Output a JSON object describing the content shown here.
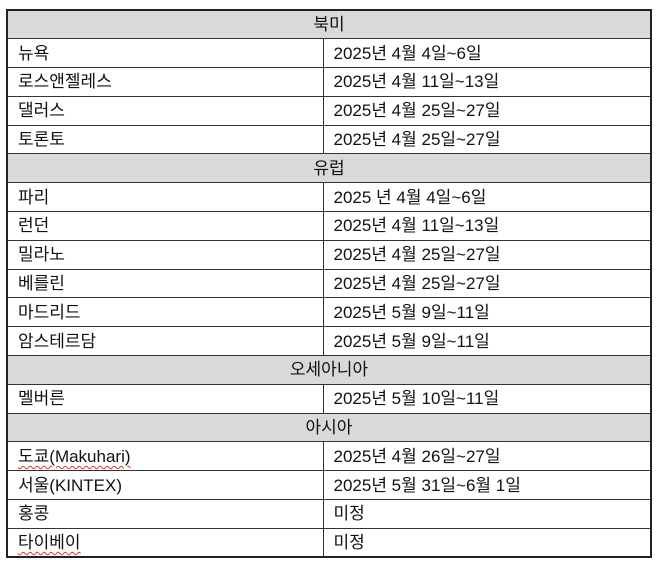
{
  "sections": [
    {
      "region": "북미",
      "rows": [
        {
          "city": "뉴욕",
          "date": "2025년 4월 4일~6일"
        },
        {
          "city": "로스앤젤레스",
          "date": "2025년 4월 11일~13일"
        },
        {
          "city": "댈러스",
          "date": "2025년 4월 25일~27일"
        },
        {
          "city": "토론토",
          "date": "2025년 4월 25일~27일"
        }
      ]
    },
    {
      "region": "유럽",
      "rows": [
        {
          "city": "파리",
          "date": "2025 년 4월 4일~6일"
        },
        {
          "city": "런던",
          "date": "2025년 4월 11일~13일"
        },
        {
          "city": "밀라노",
          "date": "2025년 4월 25일~27일"
        },
        {
          "city": "베를린",
          "date": "2025년 4월 25일~27일"
        },
        {
          "city": "마드리드",
          "date": "2025년 5월 9일~11일"
        },
        {
          "city": "암스테르담",
          "date": "2025년 5월 9일~11일"
        }
      ]
    },
    {
      "region": "오세아니아",
      "rows": [
        {
          "city": "멜버른",
          "date": "2025년 5월 10일~11일"
        }
      ]
    },
    {
      "region": "아시아",
      "rows": [
        {
          "city": "도쿄(Makuhari)",
          "date": "2025년 4월 26일~27일"
        },
        {
          "city": "서울(KINTEX)",
          "date": "2025년 5월 31일~6월 1일"
        },
        {
          "city": "홍콩",
          "date": "미정"
        },
        {
          "city": "타이베이",
          "date": "미정"
        }
      ]
    }
  ]
}
